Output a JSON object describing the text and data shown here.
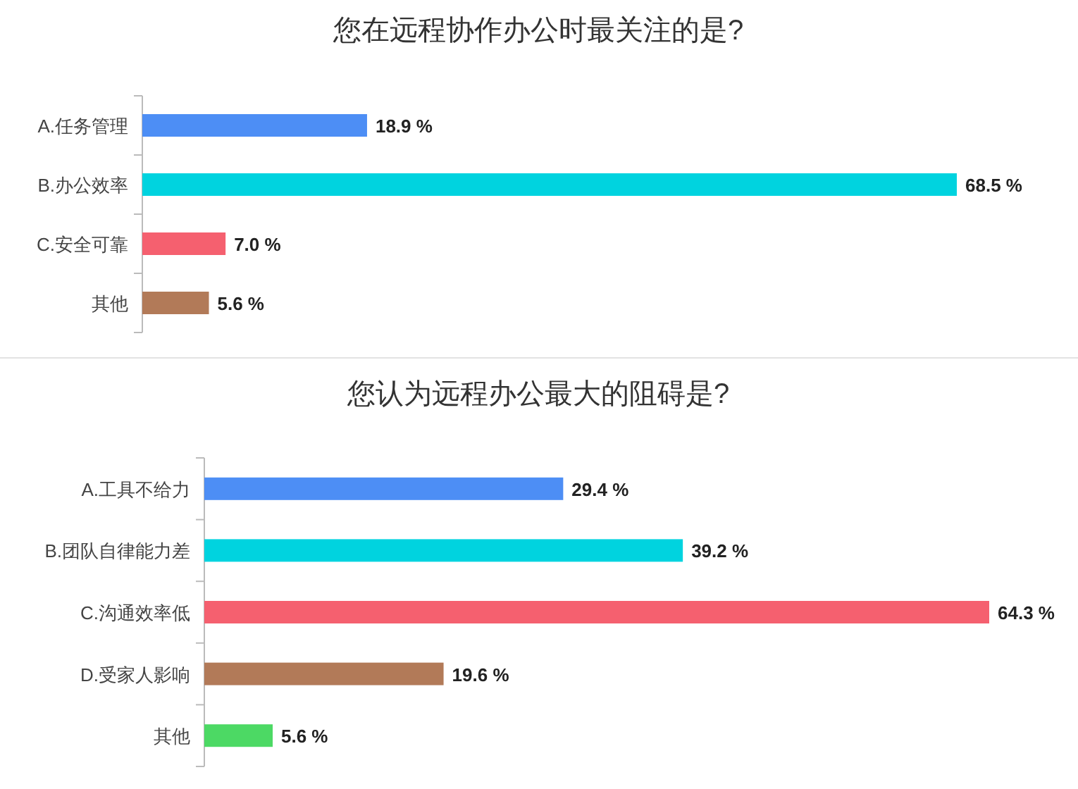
{
  "chart_data": [
    {
      "type": "bar",
      "orientation": "horizontal",
      "title": "您在远程协作办公时最关注的是?",
      "categories": [
        "A.任务管理",
        "B.办公效率",
        "C.安全可靠",
        "其他"
      ],
      "values": [
        18.9,
        68.5,
        7.0,
        5.6
      ],
      "colors": [
        "#4d8ef5",
        "#00d3df",
        "#f5606f",
        "#b27a58"
      ],
      "value_labels": [
        "18.9 %",
        "68.5 %",
        "7.0 %",
        "5.6 %"
      ]
    },
    {
      "type": "bar",
      "orientation": "horizontal",
      "title": "您认为远程办公最大的阻碍是?",
      "categories": [
        "A.工具不给力",
        "B.团队自律能力差",
        "C.沟通效率低",
        "D.受家人影响",
        "其他"
      ],
      "values": [
        29.4,
        39.2,
        64.3,
        19.6,
        5.6
      ],
      "colors": [
        "#4d8ef5",
        "#00d3df",
        "#f5606f",
        "#b27a58",
        "#4cd964"
      ],
      "value_labels": [
        "29.4 %",
        "39.2 %",
        "64.3 %",
        "19.6 %",
        "5.6 %"
      ]
    }
  ]
}
